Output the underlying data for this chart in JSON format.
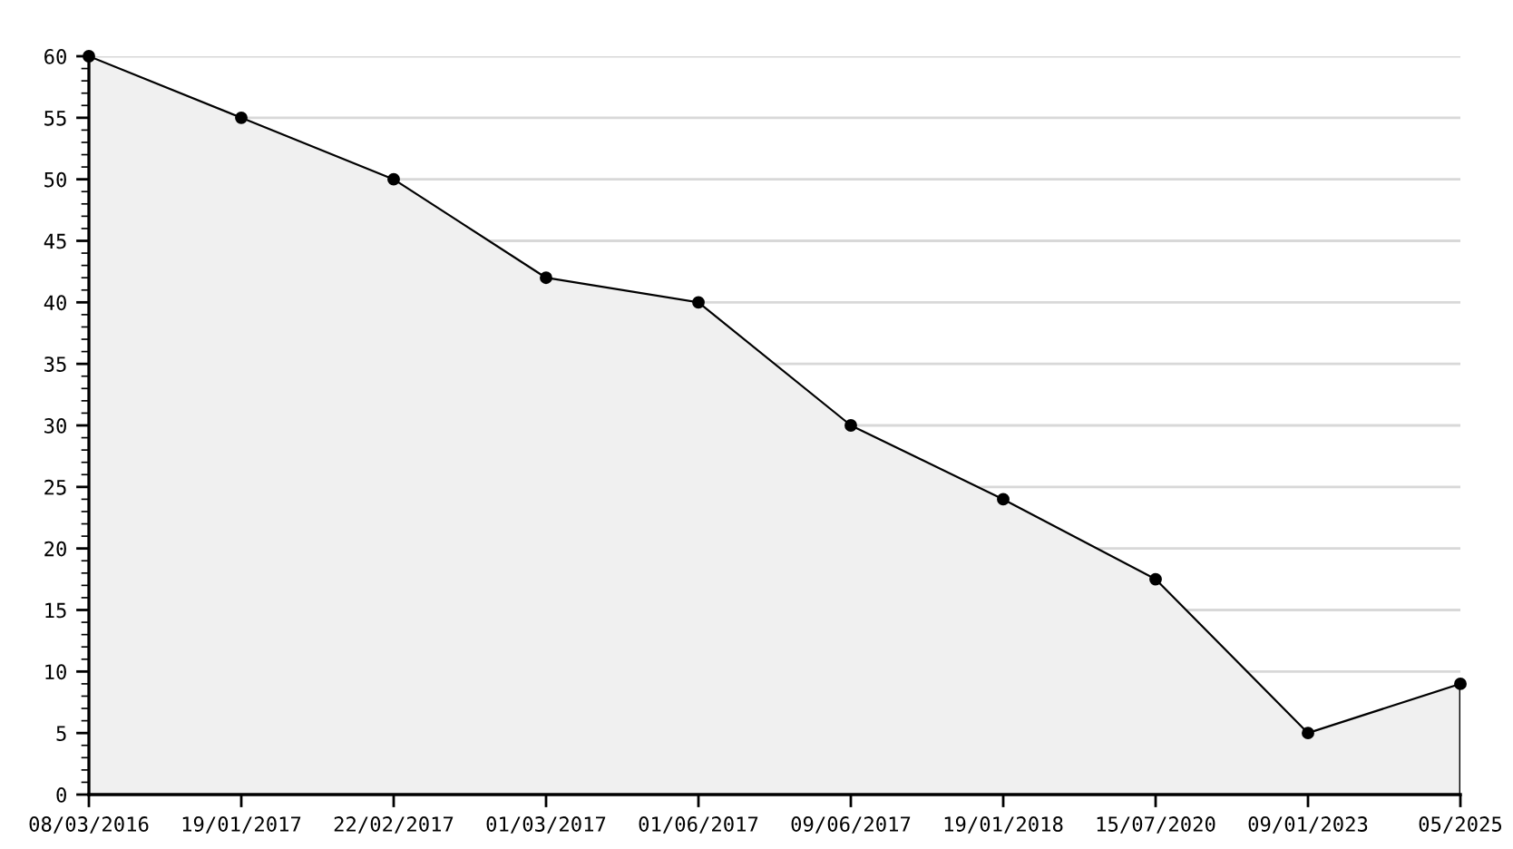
{
  "chart_data": {
    "type": "area",
    "categories": [
      "08/03/2016",
      "19/01/2017",
      "22/02/2017",
      "01/03/2017",
      "01/06/2017",
      "09/06/2017",
      "19/01/2018",
      "15/07/2020",
      "09/01/2023",
      "05/2025"
    ],
    "series": [
      {
        "color": "#f0f0f0",
        "values": [
          60,
          55,
          50,
          42,
          40,
          30,
          24,
          17.5,
          5,
          9
        ]
      }
    ],
    "ylim": [
      0,
      60
    ],
    "yticks": [
      0,
      5,
      10,
      15,
      20,
      25,
      30,
      35,
      40,
      45,
      50,
      55,
      60
    ],
    "grid": "y",
    "marker": "circle",
    "line_style": "solid"
  }
}
